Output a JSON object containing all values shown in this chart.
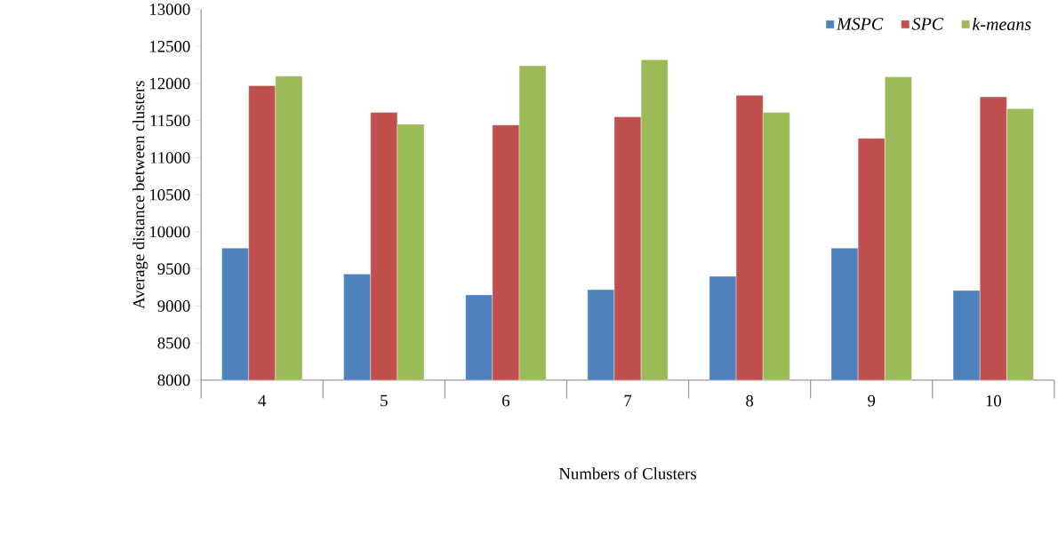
{
  "chart_data": {
    "type": "bar",
    "xlabel": "Numbers of Clusters",
    "ylabel": "Average distance between clusters",
    "categories": [
      "4",
      "5",
      "6",
      "7",
      "8",
      "9",
      "10"
    ],
    "series": [
      {
        "name": "*MSPC*",
        "color": "#4f81bd",
        "values": [
          9780,
          9430,
          9150,
          9220,
          9400,
          9780,
          9210
        ]
      },
      {
        "name": "*SPC*",
        "color": "#c0504d",
        "values": [
          11970,
          11610,
          11440,
          11550,
          11840,
          11260,
          11820
        ]
      },
      {
        "name": "*k-means*",
        "color": "#9bbb59",
        "values": [
          12100,
          11450,
          12240,
          12320,
          11610,
          12090,
          11660
        ]
      }
    ],
    "ylim": [
      8000,
      13000
    ],
    "yticks": [
      8000,
      8500,
      9000,
      9500,
      10000,
      10500,
      11000,
      11500,
      12000,
      12500,
      13000
    ],
    "grid": false,
    "legend": "top right"
  }
}
